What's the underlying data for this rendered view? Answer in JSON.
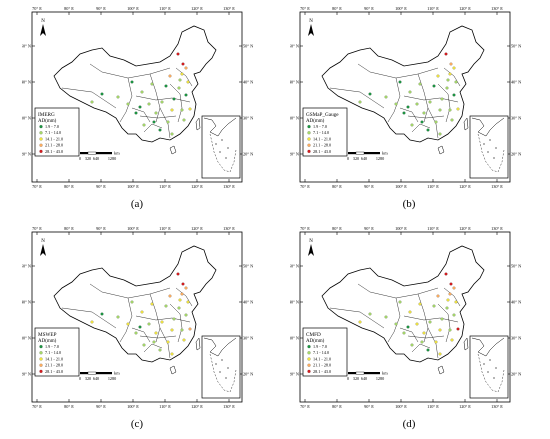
{
  "panels": [
    {
      "id": "a",
      "caption": "(a)",
      "title": "IMERG",
      "subtitle": "AD(mm)"
    },
    {
      "id": "b",
      "caption": "(b)",
      "title": "GSMaP_Gauge",
      "subtitle": "AD(mm)"
    },
    {
      "id": "c",
      "caption": "(c)",
      "title": "MSWEP",
      "subtitle": "AD(mm)"
    },
    {
      "id": "d",
      "caption": "(d)",
      "title": "CMFD",
      "subtitle": "AD(mm)"
    }
  ],
  "lon_labels": [
    "70° E",
    "80° E",
    "90° E",
    "100° E",
    "110° E",
    "120° E",
    "130° E"
  ],
  "lat_labels": [
    "50° N",
    "40° N",
    "30° N",
    "20° N"
  ],
  "north_label": "N",
  "scale": {
    "unit": "km",
    "ticks": [
      "0",
      "320",
      "640",
      "1280"
    ]
  },
  "legend_classes": [
    {
      "label": "1.9 - 7.0",
      "color": "#1a9641"
    },
    {
      "label": "7.1 - 14.0",
      "color": "#a6d96a"
    },
    {
      "label": "14.1 - 21.0",
      "color": "#f0e442"
    },
    {
      "label": "21.1 - 28.0",
      "color": "#fdae61"
    },
    {
      "label": "28.1 - 43.0",
      "color": "#d7191c"
    }
  ]
}
